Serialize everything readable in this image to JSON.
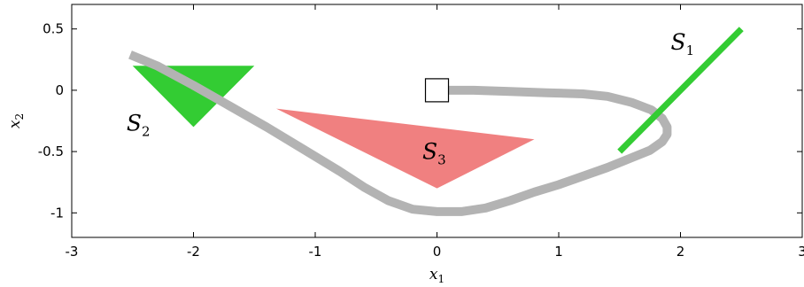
{
  "chart_data": {
    "type": "scatter",
    "title": "",
    "xlabel": {
      "main": "x",
      "sub": "1"
    },
    "ylabel": {
      "main": "x",
      "sub": "2"
    },
    "xlim": [
      -3,
      3
    ],
    "ylim": [
      -1.2,
      0.7
    ],
    "xticks": [
      -3,
      -2,
      -1,
      0,
      1,
      2,
      3
    ],
    "xtick_labels": [
      "-3",
      "-2",
      "-1",
      "0",
      "1",
      "2",
      "3"
    ],
    "yticks": [
      -1,
      -0.5,
      0,
      0.5
    ],
    "ytick_labels": [
      "-1",
      "-0.5",
      "0",
      "0.5"
    ],
    "grid": false,
    "sets": [
      {
        "id": "S1",
        "label": "S",
        "sub": "1",
        "shape": "segment",
        "color": "#33cc33",
        "points": [
          [
            1.5,
            -0.5
          ],
          [
            2.5,
            0.5
          ]
        ],
        "label_pos": [
          1.92,
          0.33
        ]
      },
      {
        "id": "S2",
        "label": "S",
        "sub": "2",
        "shape": "polygon",
        "color": "#33cc33",
        "points": [
          [
            -2.5,
            0.2
          ],
          [
            -1.5,
            0.2
          ],
          [
            -2.0,
            -0.3
          ]
        ],
        "label_pos": [
          -2.55,
          -0.33
        ]
      },
      {
        "id": "S3",
        "label": "S",
        "sub": "3",
        "shape": "polygon",
        "color": "#f08080",
        "points": [
          [
            -1.32,
            -0.15
          ],
          [
            0.8,
            -0.4
          ],
          [
            0.0,
            -0.8
          ]
        ],
        "label_pos": [
          -0.12,
          -0.56
        ]
      }
    ],
    "trajectory": {
      "color": "#b3b3b3",
      "points": [
        [
          -2.52,
          0.29
        ],
        [
          -2.3,
          0.2
        ],
        [
          -2.0,
          0.04
        ],
        [
          -1.7,
          -0.13
        ],
        [
          -1.4,
          -0.3
        ],
        [
          -1.1,
          -0.48
        ],
        [
          -0.8,
          -0.66
        ],
        [
          -0.6,
          -0.79
        ],
        [
          -0.4,
          -0.9
        ],
        [
          -0.2,
          -0.97
        ],
        [
          0.0,
          -0.99
        ],
        [
          0.2,
          -0.99
        ],
        [
          0.4,
          -0.96
        ],
        [
          0.6,
          -0.9
        ],
        [
          0.8,
          -0.83
        ],
        [
          1.0,
          -0.77
        ],
        [
          1.2,
          -0.7
        ],
        [
          1.4,
          -0.63
        ],
        [
          1.6,
          -0.55
        ],
        [
          1.75,
          -0.49
        ],
        [
          1.85,
          -0.42
        ],
        [
          1.89,
          -0.36
        ],
        [
          1.89,
          -0.3
        ],
        [
          1.85,
          -0.23
        ],
        [
          1.76,
          -0.16
        ],
        [
          1.6,
          -0.1
        ],
        [
          1.4,
          -0.05
        ],
        [
          1.2,
          -0.03
        ],
        [
          0.9,
          -0.02
        ],
        [
          0.6,
          -0.01
        ],
        [
          0.3,
          0.0
        ],
        [
          0.0,
          0.0
        ]
      ]
    },
    "start_marker": {
      "shape": "square",
      "point": [
        0.0,
        0.0
      ]
    }
  }
}
